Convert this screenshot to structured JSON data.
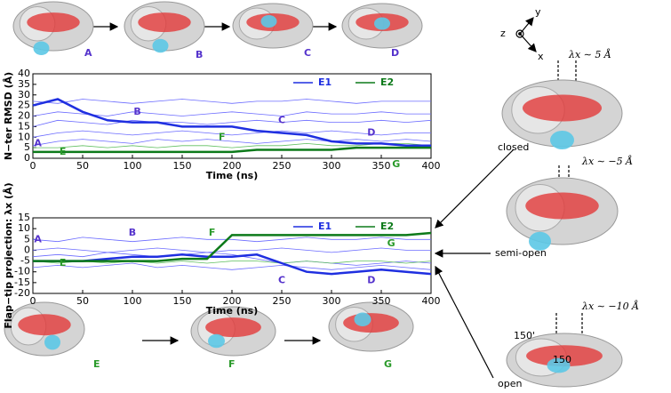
{
  "chart_data": [
    {
      "type": "line",
      "xlabel": "Time (ns)",
      "ylabel": "N−ter RMSD (Å)",
      "x": [
        0,
        25,
        50,
        75,
        100,
        125,
        150,
        175,
        200,
        225,
        250,
        275,
        300,
        325,
        350,
        375,
        400
      ],
      "xlim": [
        0,
        400
      ],
      "xticks": [
        0,
        50,
        100,
        150,
        200,
        250,
        300,
        350,
        400
      ],
      "ylim": [
        0,
        40
      ],
      "yticks": [
        0,
        5,
        10,
        15,
        20,
        25,
        30,
        35,
        40
      ],
      "series": [
        {
          "color": "#6b6bff",
          "values": [
            27,
            26,
            28,
            27,
            26,
            27,
            28,
            27,
            26,
            27,
            27,
            28,
            27,
            26,
            27,
            27,
            27
          ]
        },
        {
          "color": "#6b6bff",
          "values": [
            20,
            22,
            21,
            20,
            22,
            21,
            20,
            21,
            22,
            21,
            20,
            22,
            21,
            21,
            22,
            21,
            21
          ]
        },
        {
          "color": "#6b6bff",
          "values": [
            15,
            18,
            17,
            16,
            18,
            17,
            17,
            16,
            17,
            18,
            17,
            18,
            17,
            17,
            18,
            17,
            18
          ]
        },
        {
          "color": "#6b6bff",
          "values": [
            10,
            12,
            13,
            12,
            11,
            12,
            13,
            12,
            11,
            12,
            13,
            12,
            13,
            12,
            11,
            12,
            12
          ]
        },
        {
          "color": "#6b6bff",
          "values": [
            6,
            8,
            9,
            8,
            7,
            9,
            8,
            9,
            8,
            7,
            8,
            9,
            8,
            9,
            8,
            9,
            8
          ]
        },
        {
          "color": "#5fbf5f",
          "values": [
            5,
            5,
            6,
            5,
            6,
            5,
            6,
            6,
            5,
            6,
            6,
            7,
            6,
            6,
            7,
            7,
            6
          ]
        },
        {
          "name": "E1",
          "color": "#1f2fe0",
          "width": 2.5,
          "values": [
            25,
            28,
            22,
            18,
            17,
            17,
            15,
            15,
            15,
            13,
            12,
            11,
            8,
            7,
            7,
            6,
            6
          ]
        },
        {
          "name": "E2",
          "color": "#0d7a1a",
          "width": 2.5,
          "values": [
            3,
            3,
            3,
            3,
            3,
            3,
            3,
            3,
            3,
            4,
            4,
            4,
            4,
            5,
            5,
            5,
            5
          ]
        }
      ],
      "annotations": [
        {
          "text": "A",
          "color": "#5533cc"
        },
        {
          "text": "B",
          "color": "#5533cc"
        },
        {
          "text": "C",
          "color": "#5533cc"
        },
        {
          "text": "D",
          "color": "#5533cc"
        },
        {
          "text": "E",
          "color": "#2a9a2a"
        },
        {
          "text": "F",
          "color": "#2a9a2a"
        },
        {
          "text": "G",
          "color": "#2a9a2a"
        }
      ]
    },
    {
      "type": "line",
      "xlabel": "Time (ns)",
      "ylabel": "Flap−tip projection: λx (Å)",
      "x": [
        0,
        25,
        50,
        75,
        100,
        125,
        150,
        175,
        200,
        225,
        250,
        275,
        300,
        325,
        350,
        375,
        400
      ],
      "xlim": [
        0,
        400
      ],
      "xticks": [
        0,
        50,
        100,
        150,
        200,
        250,
        300,
        350,
        400
      ],
      "ylim": [
        -20,
        15
      ],
      "yticks": [
        -20,
        -15,
        -10,
        -5,
        0,
        5,
        10,
        15
      ],
      "series": [
        {
          "color": "#6b6bff",
          "values": [
            5,
            4,
            6,
            5,
            4,
            5,
            6,
            5,
            5,
            4,
            5,
            6,
            5,
            5,
            6,
            5,
            5
          ]
        },
        {
          "color": "#6b6bff",
          "values": [
            -3,
            -2,
            -3,
            -1,
            -2,
            -3,
            -2,
            -1,
            -2,
            -4,
            -6,
            -5,
            -6,
            -7,
            -6,
            -5,
            -6
          ]
        },
        {
          "color": "#6b6bff",
          "values": [
            -8,
            -7,
            -8,
            -7,
            -6,
            -8,
            -7,
            -8,
            -9,
            -8,
            -7,
            -8,
            -9,
            -8,
            -7,
            -8,
            -9
          ]
        },
        {
          "color": "#6b6bff",
          "values": [
            0,
            1,
            0,
            -1,
            0,
            1,
            0,
            -1,
            0,
            0,
            1,
            0,
            -1,
            0,
            1,
            0,
            0
          ]
        },
        {
          "color": "#5fbf5f",
          "values": [
            -5,
            -6,
            -5,
            -6,
            -5,
            -6,
            -5,
            -6,
            -5,
            -5,
            -6,
            -5,
            -6,
            -5,
            -5,
            -6,
            -5
          ]
        },
        {
          "name": "E1",
          "color": "#1f2fe0",
          "width": 2.5,
          "values": [
            -5,
            -5,
            -5,
            -4,
            -3,
            -3,
            -2,
            -3,
            -3,
            -2,
            -6,
            -10,
            -11,
            -10,
            -9,
            -10,
            -11
          ]
        },
        {
          "name": "E2",
          "color": "#0d7a1a",
          "width": 2.5,
          "values": [
            -5,
            -5,
            -5,
            -5,
            -5,
            -5,
            -4,
            -4,
            7,
            7,
            7,
            7,
            7,
            7,
            7,
            7,
            8
          ]
        }
      ],
      "annotations": [
        {
          "text": "A",
          "color": "#5533cc"
        },
        {
          "text": "B",
          "color": "#5533cc"
        },
        {
          "text": "C",
          "color": "#5533cc"
        },
        {
          "text": "D",
          "color": "#5533cc"
        },
        {
          "text": "E",
          "color": "#2a9a2a"
        },
        {
          "text": "F",
          "color": "#2a9a2a"
        },
        {
          "text": "G",
          "color": "#2a9a2a"
        }
      ]
    }
  ],
  "figure": {
    "top_labels": [
      "A",
      "B",
      "C",
      "D"
    ],
    "bottom_labels": [
      "E",
      "F",
      "G"
    ],
    "axes": [
      "z",
      "y",
      "x"
    ],
    "lambdas": [
      "λx ∼ 5 Å",
      "λx ∼ −5 Å",
      "λx ∼ −10 Å"
    ],
    "states": [
      "closed",
      "semi-open",
      "open"
    ],
    "residues": [
      "150'",
      "150"
    ]
  }
}
